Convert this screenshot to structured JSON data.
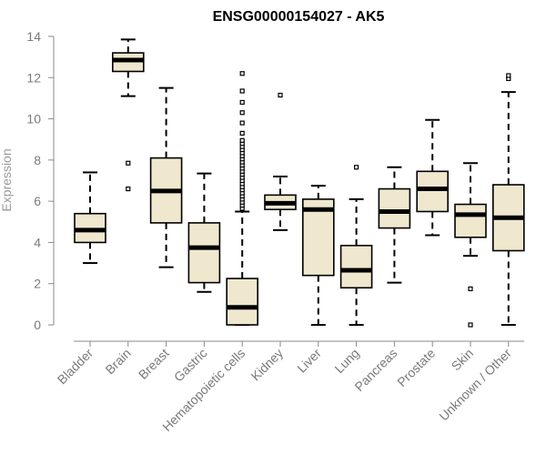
{
  "chart_data": {
    "type": "boxplot",
    "title": "ENSG00000154027 - AK5",
    "xlabel": "",
    "ylabel": "Expression",
    "ylim": [
      0,
      14
    ],
    "yticks": [
      0,
      2,
      4,
      6,
      8,
      10,
      12,
      14
    ],
    "grid": false,
    "legend": "none",
    "colors": {
      "box_fill": "#efe8cf",
      "box_stroke": "#000000",
      "median": "#000000",
      "axis": "#8a8a8a"
    },
    "categories": [
      "Bladder",
      "Brain",
      "Breast",
      "Gastric",
      "Hematopoietic cells",
      "Kidney",
      "Liver",
      "Lung",
      "Pancreas",
      "Prostate",
      "Skin",
      "Unknown / Other"
    ],
    "boxes": [
      {
        "category": "Bladder",
        "min": 3.0,
        "q1": 4.0,
        "median": 4.6,
        "q3": 5.4,
        "max": 7.4,
        "outliers": []
      },
      {
        "category": "Brain",
        "min": 11.1,
        "q1": 12.3,
        "median": 12.85,
        "q3": 13.2,
        "max": 13.85,
        "outliers": [
          7.85,
          6.6
        ]
      },
      {
        "category": "Breast",
        "min": 2.8,
        "q1": 4.95,
        "median": 6.5,
        "q3": 8.1,
        "max": 11.5,
        "outliers": []
      },
      {
        "category": "Gastric",
        "min": 1.6,
        "q1": 2.05,
        "median": 3.75,
        "q3": 4.95,
        "max": 7.35,
        "outliers": []
      },
      {
        "category": "Hematopoietic cells",
        "min": 0.0,
        "q1": 0.0,
        "median": 0.85,
        "q3": 2.25,
        "max": 5.5,
        "outliers": [
          5.65,
          5.8,
          5.95,
          6.1,
          6.25,
          6.4,
          6.55,
          6.7,
          6.85,
          7.0,
          7.15,
          7.3,
          7.45,
          7.6,
          7.75,
          7.9,
          8.05,
          8.2,
          8.35,
          8.5,
          8.65,
          8.8,
          8.95,
          9.3,
          9.8,
          10.3,
          10.8,
          11.35,
          12.2
        ]
      },
      {
        "category": "Kidney",
        "min": 4.6,
        "q1": 5.6,
        "median": 5.9,
        "q3": 6.3,
        "max": 7.2,
        "outliers": [
          11.15
        ]
      },
      {
        "category": "Liver",
        "min": 0.0,
        "q1": 2.4,
        "median": 5.6,
        "q3": 6.1,
        "max": 6.75,
        "outliers": []
      },
      {
        "category": "Lung",
        "min": 0.0,
        "q1": 1.8,
        "median": 2.65,
        "q3": 3.85,
        "max": 6.1,
        "outliers": [
          7.65
        ]
      },
      {
        "category": "Pancreas",
        "min": 2.05,
        "q1": 4.7,
        "median": 5.5,
        "q3": 6.6,
        "max": 7.65,
        "outliers": []
      },
      {
        "category": "Prostate",
        "min": 4.35,
        "q1": 5.5,
        "median": 6.6,
        "q3": 7.45,
        "max": 9.95,
        "outliers": []
      },
      {
        "category": "Skin",
        "min": 3.35,
        "q1": 4.25,
        "median": 5.35,
        "q3": 5.85,
        "max": 7.85,
        "outliers": [
          1.75,
          0.0
        ]
      },
      {
        "category": "Unknown / Other",
        "min": 0.0,
        "q1": 3.6,
        "median": 5.2,
        "q3": 6.8,
        "max": 11.3,
        "outliers": [
          11.95,
          12.1
        ]
      }
    ]
  }
}
